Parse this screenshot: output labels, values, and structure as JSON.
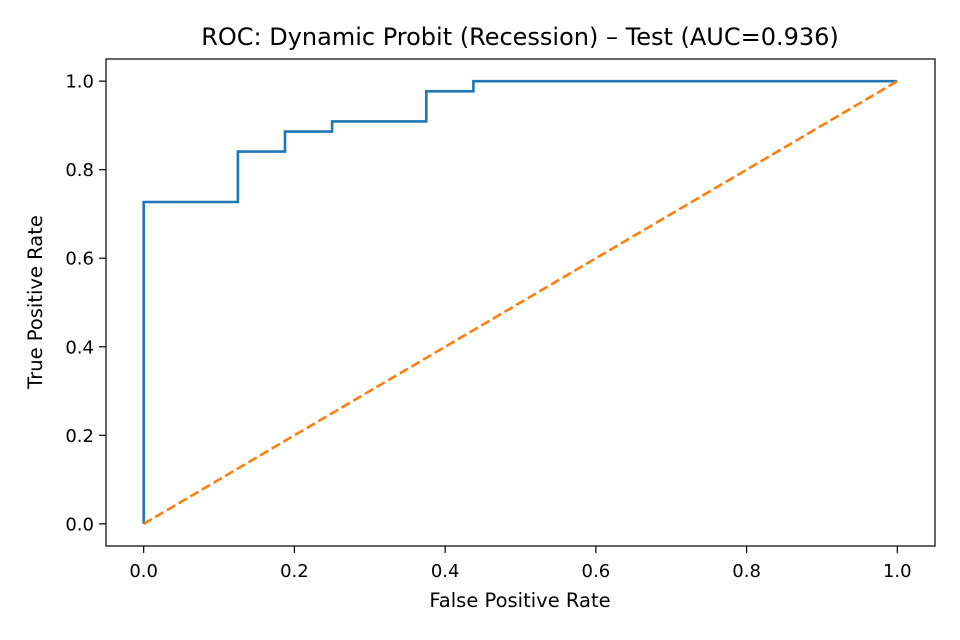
{
  "chart_data": {
    "type": "line",
    "title": "ROC: Dynamic Probit (Recession) – Test (AUC=0.936)",
    "xlabel": "False Positive Rate",
    "ylabel": "True Positive Rate",
    "xlim": [
      -0.05,
      1.05
    ],
    "ylim": [
      -0.05,
      1.05
    ],
    "xticks": [
      "0.0",
      "0.2",
      "0.4",
      "0.6",
      "0.8",
      "1.0"
    ],
    "yticks": [
      "0.0",
      "0.2",
      "0.4",
      "0.6",
      "0.8",
      "1.0"
    ],
    "grid": false,
    "legend": "none",
    "series": [
      {
        "color": "#1f77b4",
        "style": "solid",
        "x": [
          0.0,
          0.0,
          0.125,
          0.125,
          0.1875,
          0.1875,
          0.25,
          0.25,
          0.375,
          0.375,
          0.4375,
          0.4375,
          1.0
        ],
        "y": [
          0.0,
          0.727,
          0.727,
          0.841,
          0.841,
          0.886,
          0.886,
          0.909,
          0.909,
          0.977,
          0.977,
          1.0,
          1.0
        ]
      },
      {
        "color": "#ff7f0e",
        "style": "dashed",
        "x": [
          0.0,
          1.0
        ],
        "y": [
          0.0,
          1.0
        ]
      }
    ]
  }
}
